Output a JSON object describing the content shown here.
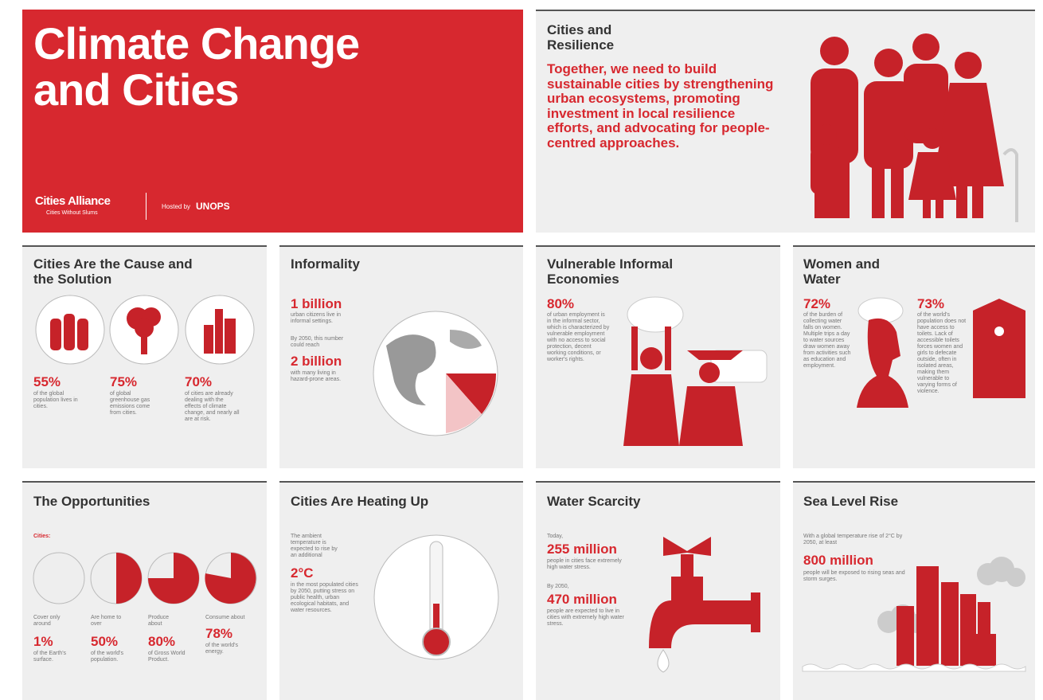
{
  "header": {
    "title": "Climate Change and Cities",
    "logo": "Cities Alliance",
    "logo_tagline": "Cities Without Slums",
    "hosted_by": "Hosted by",
    "host": "UNOPS"
  },
  "resilience": {
    "title": "Cities and Resilience",
    "quote": "Together, we need to build sustainable cities by strengthening urban ecosystems, promoting investment in local resilience efforts, and advocating for people-centred approaches."
  },
  "cause": {
    "title": "Cities Are the Cause and the Solution",
    "stats": [
      {
        "value": "55%",
        "text": "of the global population lives in cities."
      },
      {
        "value": "75%",
        "text": "of global greenhouse gas emissions come from cities."
      },
      {
        "value": "70%",
        "text": "of cities are already dealing with the effects of climate change, and nearly all are at risk."
      }
    ]
  },
  "informality": {
    "title": "Informality",
    "stat1": "1 billion",
    "text1": "urban citizens live in informal settings.",
    "text2": "By 2050, this number could reach",
    "stat2": "2 billion",
    "text3": "with many living in hazard-prone areas."
  },
  "economies": {
    "title": "Vulnerable Informal Economies",
    "stat": "80%",
    "text": "of urban employment is in the informal sector, which is characterized by vulnerable employment with no access to social protection, decent working conditions, or worker's rights."
  },
  "women": {
    "title": "Women and Water",
    "stats": [
      {
        "value": "72%",
        "text": "of the burden of collecting water falls on women. Multiple trips a day to water sources draw women away from activities such as education and employment."
      },
      {
        "value": "73%",
        "text": "of the world's population does not have access to toilets. Lack of accessible toilets forces women and girls to defecate outside, often in isolated areas, making them vulnerable to varying forms of violence."
      }
    ]
  },
  "opportunities": {
    "title": "The Opportunities",
    "label": "Cities:",
    "stats": [
      {
        "pre": "Cover only around",
        "value": "1%",
        "post": "of the Earth's surface."
      },
      {
        "pre": "Are home to over",
        "value": "50%",
        "post": "of the world's population."
      },
      {
        "pre": "Produce about",
        "value": "80%",
        "post": "of Gross World Product."
      },
      {
        "pre": "Consume about",
        "value": "78%",
        "post": "of the world's energy."
      }
    ]
  },
  "heating": {
    "title": "Cities Are Heating Up",
    "text1": "The ambient temperature is expected to rise by an additional",
    "stat": "2°C",
    "text2": "in the most populated cities by 2050, putting stress on public health, urban ecological habitats, and water resources."
  },
  "water": {
    "title": "Water Scarcity",
    "text1": "Today,",
    "stat1": "255 million",
    "text2": "people in cities face extremely high water stress.",
    "text3": "By 2050,",
    "stat2": "470 million",
    "text4": "people are expected to live in cities with extremely high water stress."
  },
  "sea": {
    "title": "Sea Level Rise",
    "text1": "With a global temperature rise of 2°C by 2050, at least",
    "stat": "800 million",
    "text2": "people will be exposed to rising seas and storm surges."
  }
}
